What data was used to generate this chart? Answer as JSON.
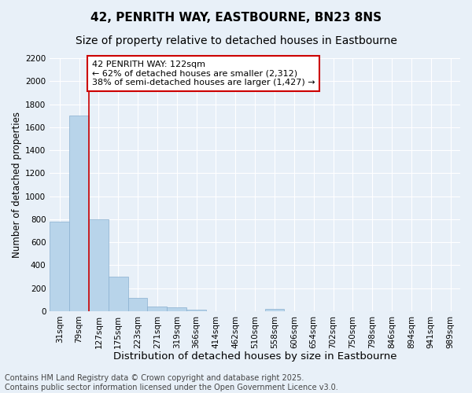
{
  "title_line1": "42, PENRITH WAY, EASTBOURNE, BN23 8NS",
  "title_line2": "Size of property relative to detached houses in Eastbourne",
  "xlabel": "Distribution of detached houses by size in Eastbourne",
  "ylabel": "Number of detached properties",
  "categories": [
    "31sqm",
    "79sqm",
    "127sqm",
    "175sqm",
    "223sqm",
    "271sqm",
    "319sqm",
    "366sqm",
    "414sqm",
    "462sqm",
    "510sqm",
    "558sqm",
    "606sqm",
    "654sqm",
    "702sqm",
    "750sqm",
    "798sqm",
    "846sqm",
    "894sqm",
    "941sqm",
    "989sqm"
  ],
  "values": [
    780,
    1700,
    800,
    300,
    115,
    40,
    30,
    10,
    0,
    0,
    0,
    20,
    0,
    0,
    0,
    0,
    0,
    0,
    0,
    0,
    0
  ],
  "bar_color": "#b8d4ea",
  "bar_edge_color": "#8ab0d0",
  "vline_index": 1.5,
  "vline_color": "#cc0000",
  "annotation_text_line1": "42 PENRITH WAY: 122sqm",
  "annotation_text_line2": "← 62% of detached houses are smaller (2,312)",
  "annotation_text_line3": "38% of semi-detached houses are larger (1,427) →",
  "annotation_box_edge_color": "#cc0000",
  "bg_color": "#e8f0f8",
  "plot_bg_color": "#e8f0f8",
  "ylim": [
    0,
    2200
  ],
  "yticks": [
    0,
    200,
    400,
    600,
    800,
    1000,
    1200,
    1400,
    1600,
    1800,
    2000,
    2200
  ],
  "footer_line1": "Contains HM Land Registry data © Crown copyright and database right 2025.",
  "footer_line2": "Contains public sector information licensed under the Open Government Licence v3.0.",
  "title_fontsize": 11,
  "subtitle_fontsize": 10,
  "xlabel_fontsize": 9.5,
  "ylabel_fontsize": 8.5,
  "tick_fontsize": 7.5,
  "annotation_fontsize": 8,
  "footer_fontsize": 7
}
